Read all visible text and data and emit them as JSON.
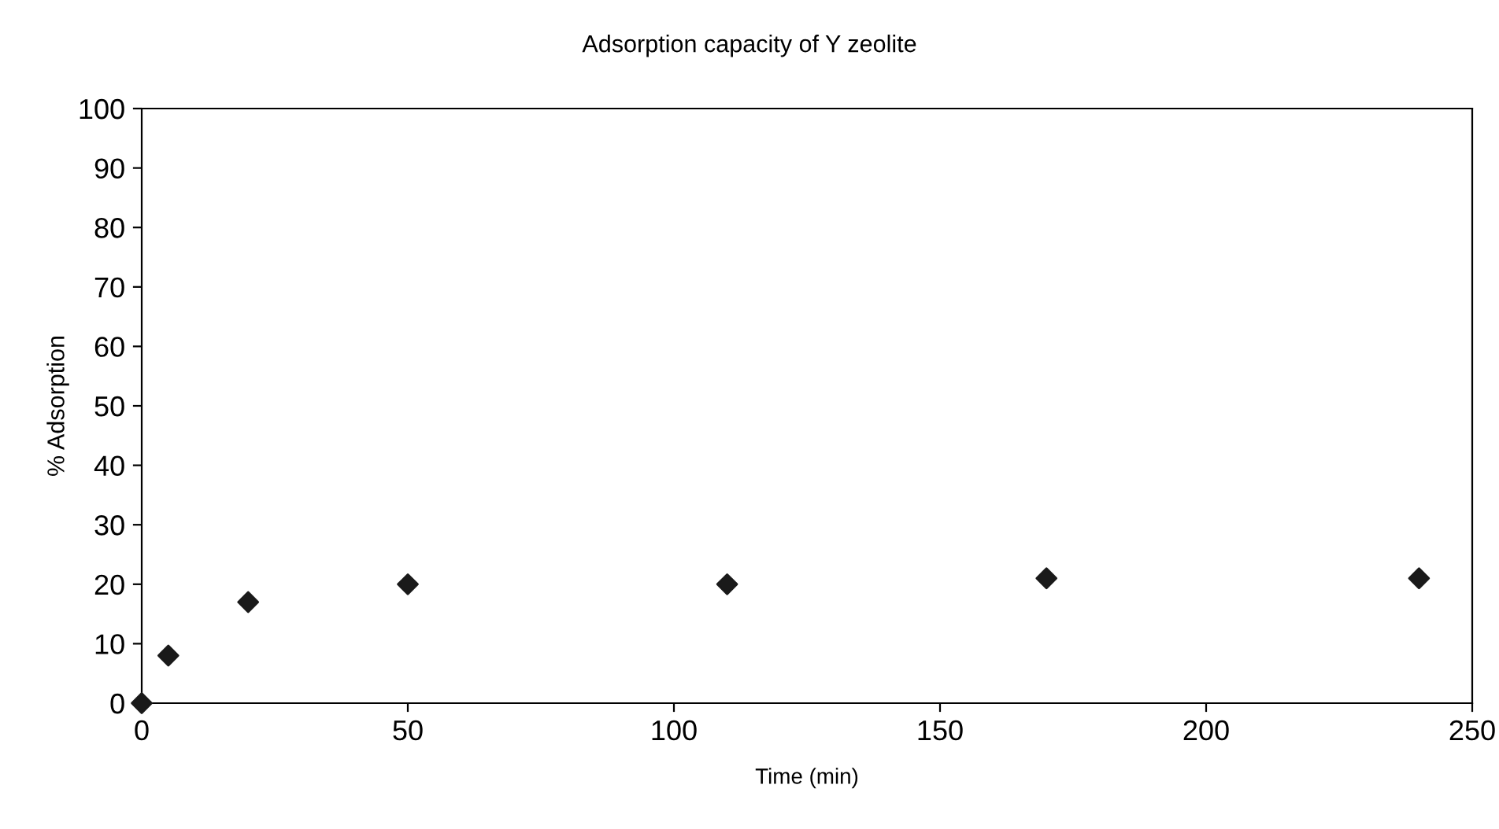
{
  "chart_data": {
    "type": "scatter",
    "title": "Adsorption capacity of Y zeolite",
    "xlabel": "Time (min)",
    "ylabel": "% Adsorption",
    "x": [
      0,
      5,
      20,
      50,
      110,
      170,
      240
    ],
    "series": [
      {
        "color": "#1a1a1a",
        "values": [
          0,
          8,
          17,
          20,
          20,
          21,
          21
        ]
      }
    ],
    "xlim": [
      0,
      250
    ],
    "ylim": [
      0,
      100
    ],
    "xticks": [
      0,
      50,
      100,
      150,
      200,
      250
    ],
    "yticks": [
      0,
      10,
      20,
      30,
      40,
      50,
      60,
      70,
      80,
      90,
      100
    ],
    "marker": "diamond",
    "grid": false,
    "legend": false
  }
}
